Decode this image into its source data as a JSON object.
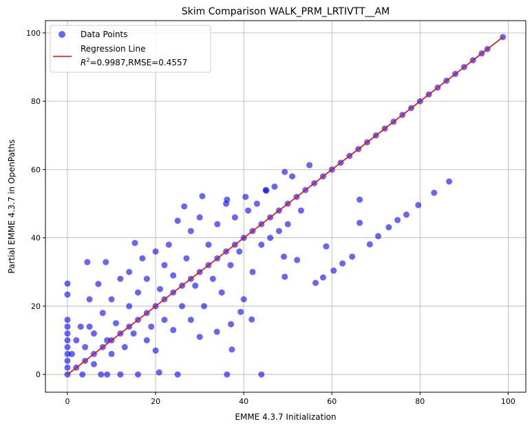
{
  "chart_data": {
    "type": "scatter",
    "title": "Skim Comparison WALK_PRM_LRTIVTT__AM",
    "xlabel": "EMME 4.3.7 Initialization",
    "ylabel": "Partial EMME 4.3.7 in OpenPaths",
    "xlim": [
      -5,
      104
    ],
    "ylim": [
      -5.2,
      103.6
    ],
    "xticks": [
      0,
      20,
      40,
      60,
      80,
      100
    ],
    "yticks": [
      0,
      20,
      40,
      60,
      80,
      100
    ],
    "grid": true,
    "legend_placement": "top-left",
    "legend": {
      "points_label": "Data Points",
      "line_label": "Regression Line",
      "line_stats": "=0.9987,RMSE=0.4557",
      "r2_symbol": "R",
      "r2_sup": "2"
    },
    "colors": {
      "points": "#0000ff",
      "line": "#ff0000",
      "grid": "#b0b0b0"
    },
    "regression": {
      "slope": 1.0,
      "intercept": 0.0,
      "x_range": [
        0,
        98.8
      ]
    },
    "series": [
      {
        "name": "Data Points",
        "points": [
          [
            0,
            0
          ],
          [
            2,
            2
          ],
          [
            4,
            4
          ],
          [
            6,
            6
          ],
          [
            8,
            8
          ],
          [
            10,
            10
          ],
          [
            12,
            12
          ],
          [
            14,
            14
          ],
          [
            16,
            16
          ],
          [
            18,
            18
          ],
          [
            20,
            20
          ],
          [
            22,
            22
          ],
          [
            24,
            24
          ],
          [
            26,
            26
          ],
          [
            28,
            28
          ],
          [
            30,
            30
          ],
          [
            32,
            32
          ],
          [
            34,
            34
          ],
          [
            36,
            36
          ],
          [
            38,
            38
          ],
          [
            40,
            40
          ],
          [
            42,
            42
          ],
          [
            44,
            44
          ],
          [
            46,
            46
          ],
          [
            48,
            48
          ],
          [
            50,
            50
          ],
          [
            52,
            52
          ],
          [
            54,
            54
          ],
          [
            56,
            56
          ],
          [
            58,
            58
          ],
          [
            60,
            60
          ],
          [
            62,
            62
          ],
          [
            64,
            64
          ],
          [
            66,
            66
          ],
          [
            68,
            68
          ],
          [
            70,
            70
          ],
          [
            72,
            72
          ],
          [
            74,
            74
          ],
          [
            76,
            76
          ],
          [
            78,
            78
          ],
          [
            80,
            80
          ],
          [
            82,
            82
          ],
          [
            84,
            84
          ],
          [
            86,
            86
          ],
          [
            88,
            88
          ],
          [
            90,
            90
          ],
          [
            92,
            92
          ],
          [
            94,
            94
          ],
          [
            95.3,
            95.3
          ],
          [
            98.8,
            98.8
          ],
          [
            0,
            2
          ],
          [
            0,
            4
          ],
          [
            0,
            6
          ],
          [
            0,
            8
          ],
          [
            0,
            10
          ],
          [
            0,
            12
          ],
          [
            0,
            14
          ],
          [
            0,
            16
          ],
          [
            0,
            23.4
          ],
          [
            0,
            26.6
          ],
          [
            1,
            6
          ],
          [
            2,
            10
          ],
          [
            3,
            14
          ],
          [
            3.4,
            0
          ],
          [
            4,
            8
          ],
          [
            4.5,
            32.9
          ],
          [
            5,
            22
          ],
          [
            5,
            14
          ],
          [
            6,
            12
          ],
          [
            6,
            3
          ],
          [
            7,
            26.5
          ],
          [
            7.6,
            0
          ],
          [
            8,
            18
          ],
          [
            8.7,
            32.9
          ],
          [
            9,
            10
          ],
          [
            9,
            0
          ],
          [
            10,
            22
          ],
          [
            10,
            6
          ],
          [
            11,
            15
          ],
          [
            12,
            0
          ],
          [
            12,
            28
          ],
          [
            13,
            8
          ],
          [
            14,
            20
          ],
          [
            14,
            30
          ],
          [
            15,
            12
          ],
          [
            15.3,
            38.5
          ],
          [
            16,
            0
          ],
          [
            16,
            24
          ],
          [
            17,
            34
          ],
          [
            18,
            10
          ],
          [
            18,
            28
          ],
          [
            19,
            14
          ],
          [
            20,
            36
          ],
          [
            20,
            7
          ],
          [
            20.8,
            0.6
          ],
          [
            21,
            25
          ],
          [
            22,
            16
          ],
          [
            22,
            32
          ],
          [
            23,
            38
          ],
          [
            24,
            13
          ],
          [
            24,
            29
          ],
          [
            25,
            0
          ],
          [
            25,
            45
          ],
          [
            26,
            20
          ],
          [
            26.5,
            49.2
          ],
          [
            27,
            34
          ],
          [
            28,
            16
          ],
          [
            28,
            42
          ],
          [
            29,
            26
          ],
          [
            30,
            11
          ],
          [
            30,
            46
          ],
          [
            30.6,
            52.2
          ],
          [
            31,
            20
          ],
          [
            32,
            38
          ],
          [
            33,
            28
          ],
          [
            33.9,
            12.5
          ],
          [
            34,
            44
          ],
          [
            35,
            24
          ],
          [
            36,
            50
          ],
          [
            36.2,
            0
          ],
          [
            36.2,
            51.2
          ],
          [
            37,
            32
          ],
          [
            37.1,
            14.7
          ],
          [
            37.3,
            7.3
          ],
          [
            38,
            46
          ],
          [
            39,
            36
          ],
          [
            39.3,
            18.3
          ],
          [
            40,
            22
          ],
          [
            40.4,
            52
          ],
          [
            41,
            48
          ],
          [
            41.8,
            16.1
          ],
          [
            42,
            30
          ],
          [
            43,
            50
          ],
          [
            44,
            0
          ],
          [
            44,
            38
          ],
          [
            45,
            54
          ],
          [
            45.1,
            53.8
          ],
          [
            46,
            40
          ],
          [
            47,
            55
          ],
          [
            48,
            42
          ],
          [
            49.1,
            34.5
          ],
          [
            49.3,
            28.6
          ],
          [
            49.3,
            59.3
          ],
          [
            50,
            44
          ],
          [
            51,
            58
          ],
          [
            52.1,
            33.5
          ],
          [
            53,
            48
          ],
          [
            54.9,
            61.3
          ],
          [
            56.3,
            26.8
          ],
          [
            58,
            28.4
          ],
          [
            58.7,
            37.5
          ],
          [
            60.4,
            30.4
          ],
          [
            62.4,
            32.5
          ],
          [
            64.6,
            34.5
          ],
          [
            66.3,
            44.4
          ],
          [
            66.3,
            51.2
          ],
          [
            68.6,
            38.1
          ],
          [
            70.5,
            40.5
          ],
          [
            72.9,
            43.1
          ],
          [
            74.9,
            45.2
          ],
          [
            76.9,
            46.8
          ],
          [
            79.6,
            49.6
          ],
          [
            83.2,
            53.2
          ],
          [
            86.6,
            56.5
          ]
        ]
      }
    ]
  }
}
